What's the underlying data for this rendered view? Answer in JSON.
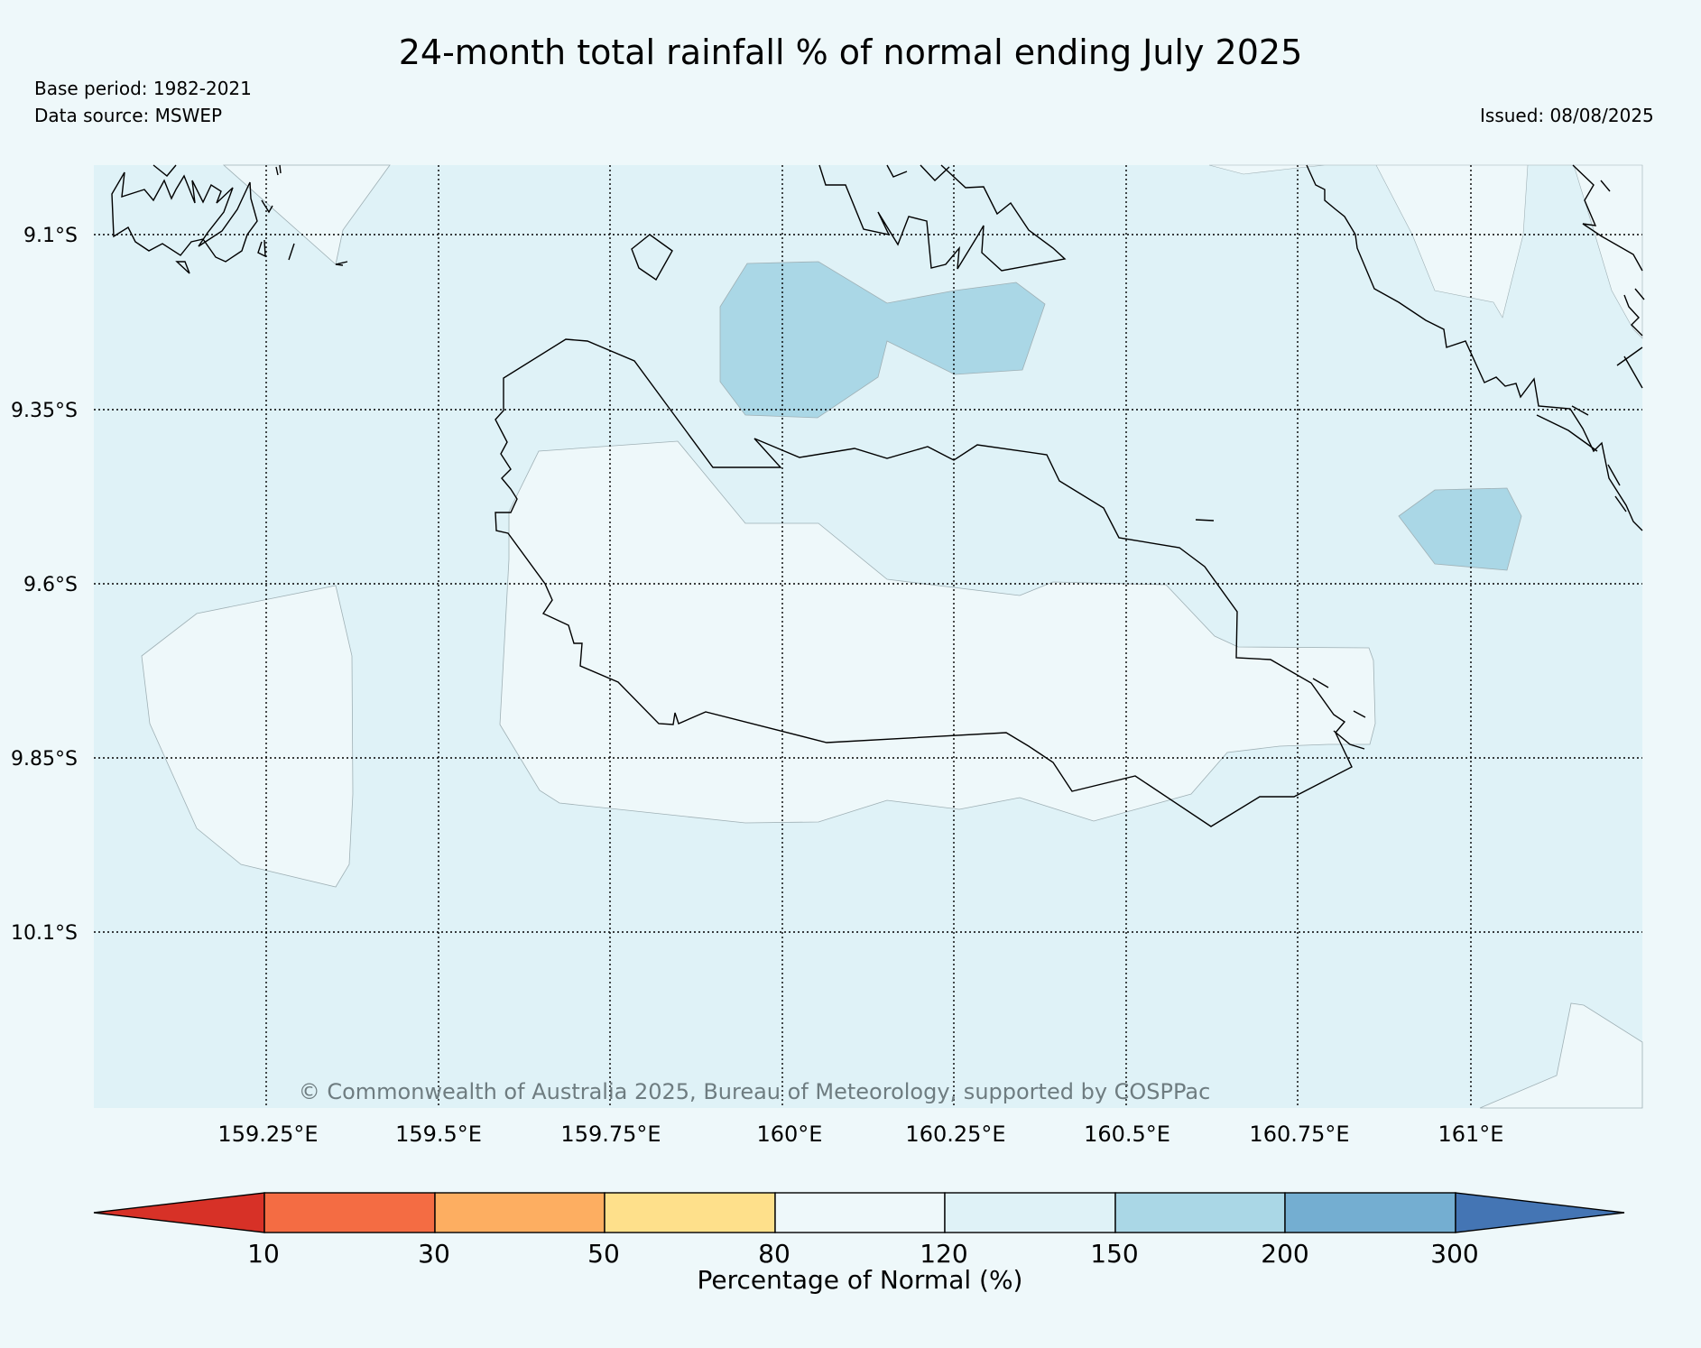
{
  "header": {
    "title": "24-month total rainfall % of normal ending July 2025",
    "base_period": "Base period: 1982-2021",
    "data_source": "Data source: MSWEP",
    "issued": "Issued: 08/08/2025"
  },
  "map": {
    "lat_labels": [
      "9.1°S",
      "9.35°S",
      "9.6°S",
      "9.85°S",
      "10.1°S"
    ],
    "lon_labels": [
      "159.25°E",
      "159.5°E",
      "159.75°E",
      "160°E",
      "160.25°E",
      "160.5°E",
      "160.75°E",
      "161°E"
    ],
    "copyright": "© Commonwealth of Australia 2025, Bureau of Meteorology, supported by COSPPac",
    "colors": {
      "land_background": "#dff2f7",
      "band_80_120": "#eef8fa",
      "band_120_150": "#dff2f7",
      "band_150_200": "#aad7e6"
    }
  },
  "colorbar": {
    "title": "Percentage of Normal (%)",
    "ticks": [
      "10",
      "30",
      "50",
      "80",
      "120",
      "150",
      "200",
      "300"
    ],
    "colors": [
      "#d73127",
      "#f46c43",
      "#fdae61",
      "#fee08b",
      "#eef8fa",
      "#dff2f7",
      "#aad7e6",
      "#74aed1",
      "#4475b4"
    ]
  }
}
